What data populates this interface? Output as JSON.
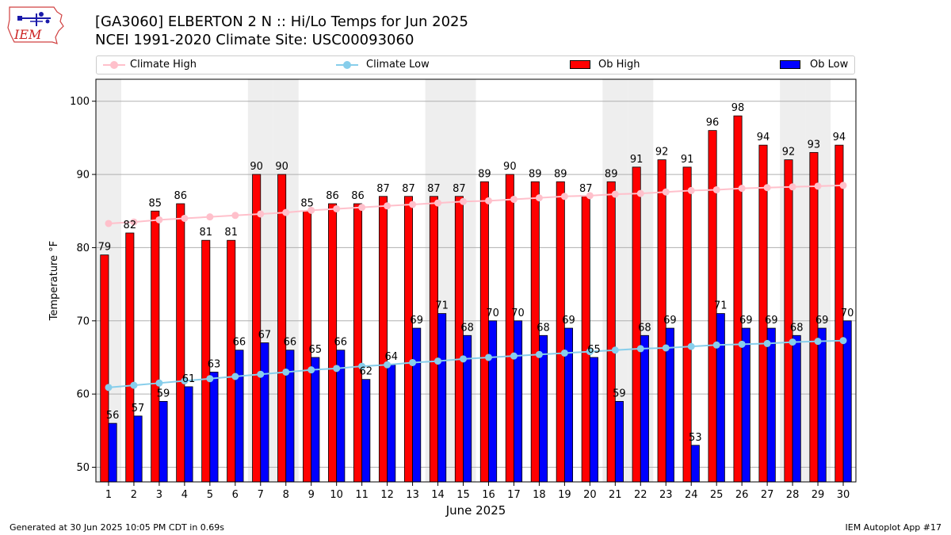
{
  "header": {
    "title_line1": "[GA3060] ELBERTON 2 N :: Hi/Lo Temps for Jun 2025",
    "title_line2": "NCEI 1991-2020 Climate Site: USC00093060",
    "logo_text": "IEM"
  },
  "legend": {
    "climate_high": "Climate High",
    "climate_low": "Climate Low",
    "ob_high": "Ob High",
    "ob_low": "Ob Low",
    "placement": "top, above plot"
  },
  "footer": {
    "left": "Generated at 30 Jun 2025 10:05 PM CDT in 0.69s",
    "right": "IEM Autoplot App #17"
  },
  "colors": {
    "ob_high": "#ff0000",
    "ob_low": "#0000ff",
    "climate_high": "#ffc0cb",
    "climate_low": "#87ceeb",
    "weekend_shade": "#eeeeee",
    "grid": "#b0b0b0"
  },
  "chart_data": {
    "type": "bar",
    "xlabel": "June 2025",
    "ylabel": "Temperature °F",
    "ylim": [
      48,
      103
    ],
    "yticks": [
      50,
      60,
      70,
      80,
      90,
      100
    ],
    "grid": true,
    "categories": [
      "1",
      "2",
      "3",
      "4",
      "5",
      "6",
      "7",
      "8",
      "9",
      "10",
      "11",
      "12",
      "13",
      "14",
      "15",
      "16",
      "17",
      "18",
      "19",
      "20",
      "21",
      "22",
      "23",
      "24",
      "25",
      "26",
      "27",
      "28",
      "29",
      "30"
    ],
    "weekend_days": [
      1,
      7,
      8,
      14,
      15,
      21,
      22,
      28,
      29
    ],
    "series": [
      {
        "name": "Ob High",
        "kind": "bar",
        "values": [
          79,
          82,
          85,
          86,
          81,
          81,
          90,
          90,
          85,
          86,
          86,
          87,
          87,
          87,
          87,
          89,
          90,
          89,
          89,
          87,
          89,
          91,
          92,
          91,
          96,
          98,
          94,
          92,
          93,
          94
        ]
      },
      {
        "name": "Ob Low",
        "kind": "bar",
        "values": [
          56,
          57,
          59,
          61,
          63,
          66,
          67,
          66,
          65,
          66,
          62,
          64,
          69,
          71,
          68,
          70,
          70,
          68,
          69,
          65,
          59,
          68,
          69,
          53,
          71,
          69,
          69,
          68,
          69,
          70
        ]
      },
      {
        "name": "Climate High",
        "kind": "line",
        "values": [
          83.3,
          83.5,
          83.8,
          84.0,
          84.2,
          84.4,
          84.6,
          84.8,
          85.1,
          85.3,
          85.5,
          85.7,
          85.9,
          86.1,
          86.3,
          86.4,
          86.6,
          86.8,
          87.0,
          87.1,
          87.3,
          87.4,
          87.6,
          87.8,
          87.9,
          88.1,
          88.2,
          88.3,
          88.4,
          88.5
        ]
      },
      {
        "name": "Climate Low",
        "kind": "line",
        "values": [
          60.9,
          61.2,
          61.5,
          61.8,
          62.1,
          62.4,
          62.7,
          63.0,
          63.3,
          63.5,
          63.8,
          64.0,
          64.3,
          64.5,
          64.8,
          65.0,
          65.2,
          65.4,
          65.6,
          65.8,
          66.0,
          66.2,
          66.3,
          66.5,
          66.7,
          66.8,
          66.9,
          67.1,
          67.2,
          67.3
        ]
      }
    ]
  }
}
